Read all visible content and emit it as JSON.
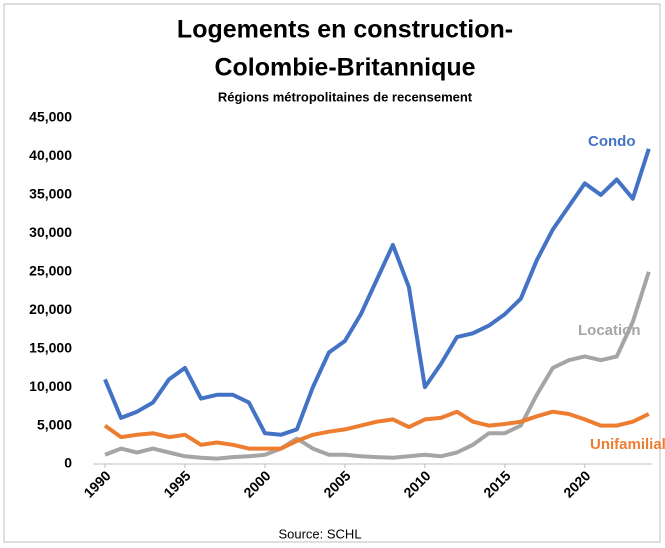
{
  "chart_data": {
    "type": "line",
    "title": [
      "Logements en construction-",
      "Colombie-Britannique"
    ],
    "subtitle": "Régions métropolitaines de recensement",
    "source": "Source: SCHL",
    "x": [
      1990,
      1991,
      1992,
      1993,
      1994,
      1995,
      1996,
      1997,
      1998,
      1999,
      2000,
      2001,
      2002,
      2003,
      2004,
      2005,
      2006,
      2007,
      2008,
      2009,
      2010,
      2011,
      2012,
      2013,
      2014,
      2015,
      2016,
      2017,
      2018,
      2019,
      2020,
      2021,
      2022,
      2023,
      2024
    ],
    "series": [
      {
        "name": "Condo",
        "color": "#4472c4",
        "values": [
          11000,
          6000,
          6800,
          8000,
          11000,
          12500,
          8500,
          9000,
          9000,
          8000,
          4000,
          3800,
          4500,
          10000,
          14500,
          16000,
          19500,
          24000,
          28500,
          23000,
          10000,
          13000,
          16500,
          17000,
          18000,
          19500,
          21500,
          26500,
          30500,
          33500,
          36500,
          35000,
          37000,
          34500,
          41000
        ]
      },
      {
        "name": "Location",
        "color": "#a5a5a5",
        "values": [
          1200,
          2000,
          1500,
          2000,
          1500,
          1000,
          800,
          700,
          900,
          1000,
          1200,
          2000,
          3300,
          2000,
          1200,
          1200,
          1000,
          900,
          800,
          1000,
          1200,
          1000,
          1500,
          2500,
          4000,
          4000,
          5000,
          9000,
          12500,
          13500,
          14000,
          13500,
          14000,
          18500,
          25000
        ]
      },
      {
        "name": "Unifamiliale",
        "color": "#ed7d31",
        "values": [
          5000,
          3500,
          3800,
          4000,
          3500,
          3800,
          2500,
          2800,
          2500,
          2000,
          2000,
          2000,
          3000,
          3800,
          4200,
          4500,
          5000,
          5500,
          5800,
          4800,
          5800,
          6000,
          6800,
          5500,
          5000,
          5200,
          5500,
          6200,
          6800,
          6500,
          5800,
          5000,
          5000,
          5500,
          6500
        ]
      }
    ],
    "xlim": [
      1989.25,
      2024.2
    ],
    "xticks": [
      1990,
      1995,
      2000,
      2005,
      2010,
      2015,
      2020
    ],
    "ylim": [
      0,
      45000
    ],
    "yticks": [
      0,
      {
        "value": 5000,
        "label": "5,000"
      },
      {
        "value": 10000,
        "label": "10,000"
      },
      {
        "value": 15000,
        "label": "15,000"
      },
      {
        "value": 20000,
        "label": "20,000"
      },
      {
        "value": 25000,
        "label": "25,000"
      },
      {
        "value": 30000,
        "label": "30,000"
      },
      {
        "value": 35000,
        "label": "35,000"
      },
      {
        "value": 40000,
        "label": "40,000"
      },
      {
        "value": 45000,
        "label": "45,000"
      }
    ],
    "grid": false
  }
}
